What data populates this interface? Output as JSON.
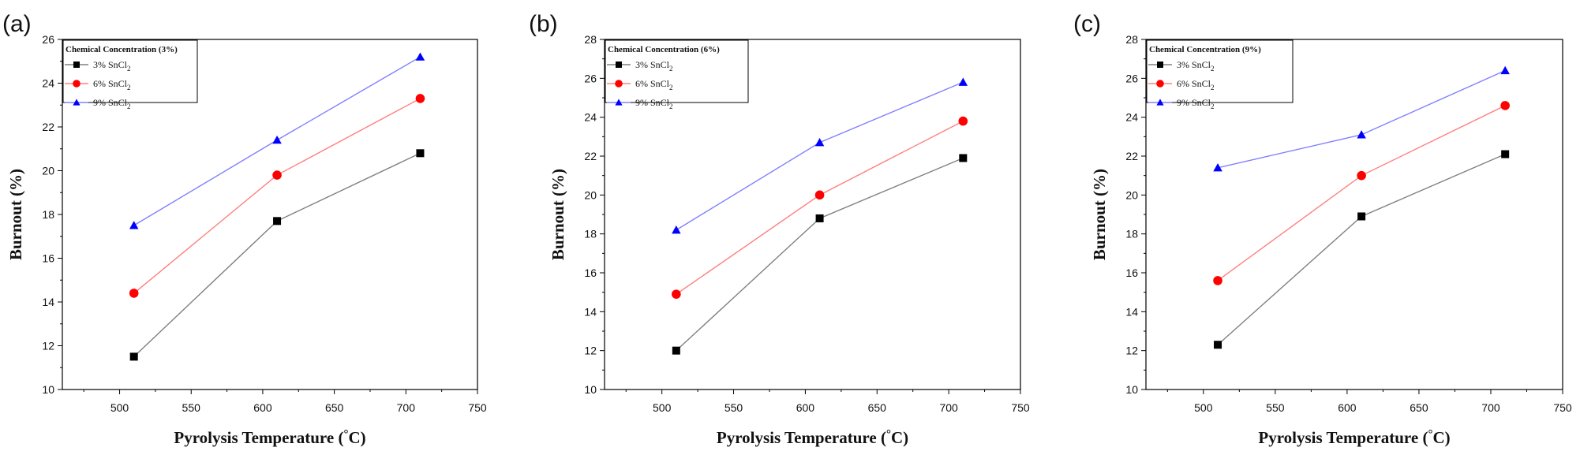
{
  "chart_data": [
    {
      "type": "line",
      "panel_label": "(a)",
      "xlabel": "Pyrolysis Temperature (°C)",
      "ylabel": "Burnout (%)",
      "xlim": [
        460,
        750
      ],
      "ylim": [
        10,
        26
      ],
      "xticks": [
        "500",
        "550",
        "600",
        "650",
        "700",
        "750"
      ],
      "yticks": [
        "10",
        "12",
        "14",
        "16",
        "18",
        "20",
        "22",
        "24",
        "26"
      ],
      "legend": {
        "title": "Chemical Concentration (3%)",
        "position": "top-left"
      },
      "x": [
        510,
        610,
        710
      ],
      "series": [
        {
          "name": "3% SnCl2",
          "label_main": "3% SnCl",
          "label_sub": "2",
          "marker": "square",
          "marker_color": "#000000",
          "line_color": "#808080",
          "values": [
            11.5,
            17.7,
            20.8
          ]
        },
        {
          "name": "6% SnCl2",
          "label_main": "6% SnCl",
          "label_sub": "2",
          "marker": "circle",
          "marker_color": "#ff0000",
          "line_color": "#ff8080",
          "values": [
            14.4,
            19.8,
            23.3
          ]
        },
        {
          "name": "9% SnCl2",
          "label_main": "9% SnCl",
          "label_sub": "2",
          "marker": "triangle",
          "marker_color": "#0000ff",
          "line_color": "#8080ff",
          "values": [
            17.5,
            21.4,
            25.2
          ]
        }
      ]
    },
    {
      "type": "line",
      "panel_label": "(b)",
      "xlabel": "Pyrolysis Temperature (°C)",
      "ylabel": "Burnout (%)",
      "xlim": [
        460,
        750
      ],
      "ylim": [
        10,
        28
      ],
      "xticks": [
        "500",
        "550",
        "600",
        "650",
        "700",
        "750"
      ],
      "yticks": [
        "10",
        "12",
        "14",
        "16",
        "18",
        "20",
        "22",
        "24",
        "26",
        "28"
      ],
      "legend": {
        "title": "Chemical Concentration (6%)",
        "position": "top-left"
      },
      "x": [
        510,
        610,
        710
      ],
      "series": [
        {
          "name": "3% SnCl2",
          "label_main": "3% SnCl",
          "label_sub": "2",
          "marker": "square",
          "marker_color": "#000000",
          "line_color": "#808080",
          "values": [
            12.0,
            18.8,
            21.9
          ]
        },
        {
          "name": "6% SnCl2",
          "label_main": "6% SnCl",
          "label_sub": "2",
          "marker": "circle",
          "marker_color": "#ff0000",
          "line_color": "#ff8080",
          "values": [
            14.9,
            20.0,
            23.8
          ]
        },
        {
          "name": "9% SnCl2",
          "label_main": "9% SnCl",
          "label_sub": "2",
          "marker": "triangle",
          "marker_color": "#0000ff",
          "line_color": "#8080ff",
          "values": [
            18.2,
            22.7,
            25.8
          ]
        }
      ]
    },
    {
      "type": "line",
      "panel_label": "(c)",
      "xlabel": "Pyrolysis Temperature (°C)",
      "ylabel": "Burnout (%)",
      "xlim": [
        460,
        750
      ],
      "ylim": [
        10,
        28
      ],
      "xticks": [
        "500",
        "550",
        "600",
        "650",
        "700",
        "750"
      ],
      "yticks": [
        "10",
        "12",
        "14",
        "16",
        "18",
        "20",
        "22",
        "24",
        "26",
        "28"
      ],
      "legend": {
        "title": "Chemical Concentration (9%)",
        "position": "top-left"
      },
      "x": [
        510,
        610,
        710
      ],
      "series": [
        {
          "name": "3% SnCl2",
          "label_main": "3% SnCl",
          "label_sub": "2",
          "marker": "square",
          "marker_color": "#000000",
          "line_color": "#808080",
          "values": [
            12.3,
            18.9,
            22.1
          ]
        },
        {
          "name": "6% SnCl2",
          "label_main": "6% SnCl",
          "label_sub": "2",
          "marker": "circle",
          "marker_color": "#ff0000",
          "line_color": "#ff8080",
          "values": [
            15.6,
            21.0,
            24.6
          ]
        },
        {
          "name": "9% SnCl2",
          "label_main": "9% SnCl",
          "label_sub": "2",
          "marker": "triangle",
          "marker_color": "#0000ff",
          "line_color": "#8080ff",
          "values": [
            21.4,
            23.1,
            26.4
          ]
        }
      ]
    }
  ]
}
